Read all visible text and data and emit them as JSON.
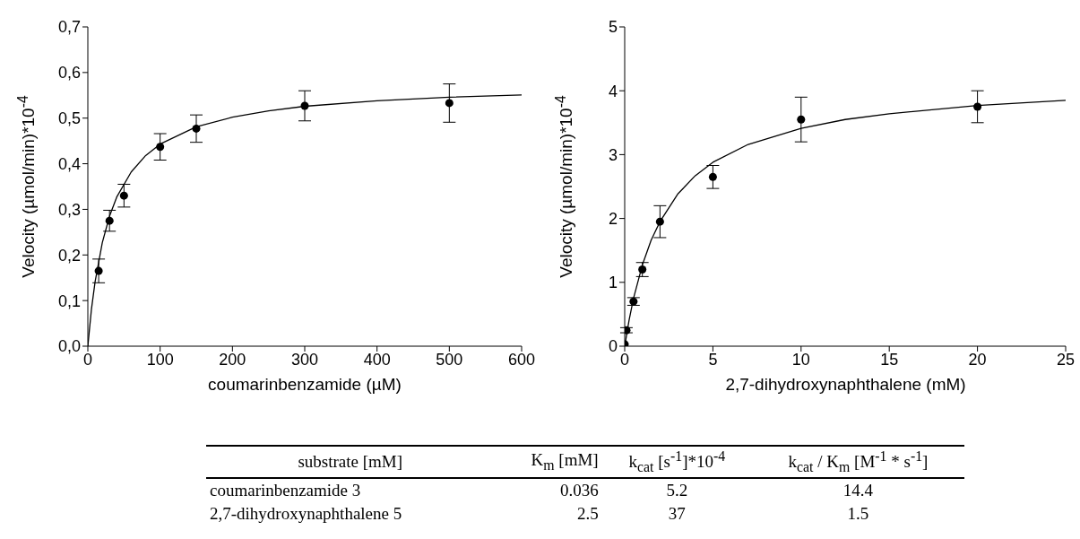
{
  "chart_data": [
    {
      "type": "scatter",
      "xlabel": "coumarinbenzamide (µM)",
      "ylabel": "Velocity (µmol/min)*10$^{-4}$",
      "xlim": [
        0,
        600
      ],
      "xticks": [
        0,
        100,
        200,
        300,
        400,
        500,
        600
      ],
      "ylim": [
        0,
        0.7
      ],
      "yticks": [
        {
          "value": 0,
          "label": "0,0"
        },
        {
          "value": 0.1,
          "label": "0,1"
        },
        {
          "value": 0.2,
          "label": "0,2"
        },
        {
          "value": 0.3,
          "label": "0,3"
        },
        {
          "value": 0.4,
          "label": "0,4"
        },
        {
          "value": 0.5,
          "label": "0,5"
        },
        {
          "value": 0.6,
          "label": "0,6"
        },
        {
          "value": 0.7,
          "label": "0,7"
        }
      ],
      "marker": "circle",
      "series": [
        {
          "type": "scatter",
          "color": "#000000",
          "x": [
            15,
            30,
            50,
            100,
            150,
            300,
            500
          ],
          "values": [
            0.165,
            0.275,
            0.33,
            0.437,
            0.477,
            0.527,
            0.533
          ],
          "errors": [
            0.026,
            0.023,
            0.025,
            0.029,
            0.03,
            0.033,
            0.042
          ]
        },
        {
          "type": "line",
          "color": "#000000",
          "marker": "none",
          "line_style": "solid",
          "x": [
            0,
            5,
            10,
            20,
            30,
            40,
            60,
            80,
            100,
            150,
            200,
            250,
            300,
            400,
            500,
            600
          ],
          "values": [
            0,
            0.081,
            0.141,
            0.227,
            0.285,
            0.327,
            0.382,
            0.418,
            0.443,
            0.481,
            0.502,
            0.516,
            0.526,
            0.538,
            0.546,
            0.551
          ]
        }
      ]
    },
    {
      "type": "scatter",
      "xlabel": "2,7-dihydroxynaphthalene (mM)",
      "ylabel": "Velocity (µmol/min)*10$^{-4}$",
      "xlim": [
        0,
        25
      ],
      "xticks": [
        0,
        5,
        10,
        15,
        20,
        25
      ],
      "ylim": [
        0,
        5
      ],
      "yticks": [
        0,
        1,
        2,
        3,
        4,
        5
      ],
      "marker": "circle",
      "series": [
        {
          "type": "scatter",
          "color": "#000000",
          "x": [
            0,
            0.1,
            0.5,
            1,
            2,
            5,
            10,
            20
          ],
          "values": [
            0.03,
            0.25,
            0.7,
            1.2,
            1.95,
            2.65,
            3.55,
            3.75
          ],
          "errors": [
            null,
            0.04,
            0.06,
            0.11,
            0.25,
            0.18,
            0.35,
            0.25
          ]
        },
        {
          "type": "line",
          "color": "#000000",
          "marker": "none",
          "line_style": "solid",
          "x": [
            0,
            0.25,
            0.5,
            1,
            1.5,
            2,
            3,
            4,
            5,
            7,
            10,
            12.5,
            15,
            20,
            25
          ],
          "values": [
            0,
            0.41,
            0.75,
            1.27,
            1.66,
            1.95,
            2.38,
            2.67,
            2.88,
            3.16,
            3.41,
            3.55,
            3.64,
            3.77,
            3.85
          ]
        }
      ]
    },
    {
      "type": "other",
      "annotations": [
        "substrate [mM]",
        "K$_{m}$ [mM]",
        "k$_{cat}$ [s$^{-1}$]*10$^{-4}$",
        "k$_{cat}$ / K$_{m}$ [M$^{-1}$ * s$^{-1}$]",
        "coumarinbenzamide 3",
        "0.036",
        "5.2",
        "14.4",
        "2,7-dihydroxynaphthalene 5",
        "2.5",
        "37",
        "1.5"
      ]
    }
  ]
}
